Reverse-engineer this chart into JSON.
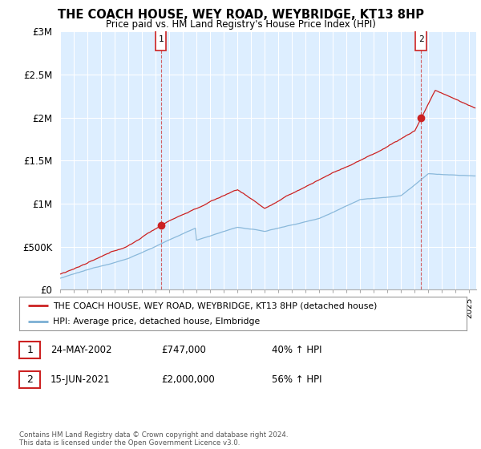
{
  "title": "THE COACH HOUSE, WEY ROAD, WEYBRIDGE, KT13 8HP",
  "subtitle": "Price paid vs. HM Land Registry's House Price Index (HPI)",
  "ylabel_ticks": [
    "£0",
    "£500K",
    "£1M",
    "£1.5M",
    "£2M",
    "£2.5M",
    "£3M"
  ],
  "ylim": [
    0,
    3000000
  ],
  "yticks": [
    0,
    500000,
    1000000,
    1500000,
    2000000,
    2500000,
    3000000
  ],
  "xlim_start": 1995.0,
  "xlim_end": 2025.5,
  "hpi_color": "#7bafd4",
  "price_color": "#cc2222",
  "dashed_color": "#cc2222",
  "sale1_x": 2002.38,
  "sale1_y": 747000,
  "sale2_x": 2021.46,
  "sale2_y": 2000000,
  "legend_line1": "THE COACH HOUSE, WEY ROAD, WEYBRIDGE, KT13 8HP (detached house)",
  "legend_line2": "HPI: Average price, detached house, Elmbridge",
  "table_row1_num": "1",
  "table_row1_date": "24-MAY-2002",
  "table_row1_price": "£747,000",
  "table_row1_hpi": "40% ↑ HPI",
  "table_row2_num": "2",
  "table_row2_date": "15-JUN-2021",
  "table_row2_price": "£2,000,000",
  "table_row2_hpi": "56% ↑ HPI",
  "footer": "Contains HM Land Registry data © Crown copyright and database right 2024.\nThis data is licensed under the Open Government Licence v3.0.",
  "background_color": "#ffffff",
  "plot_bg_color": "#ddeeff"
}
